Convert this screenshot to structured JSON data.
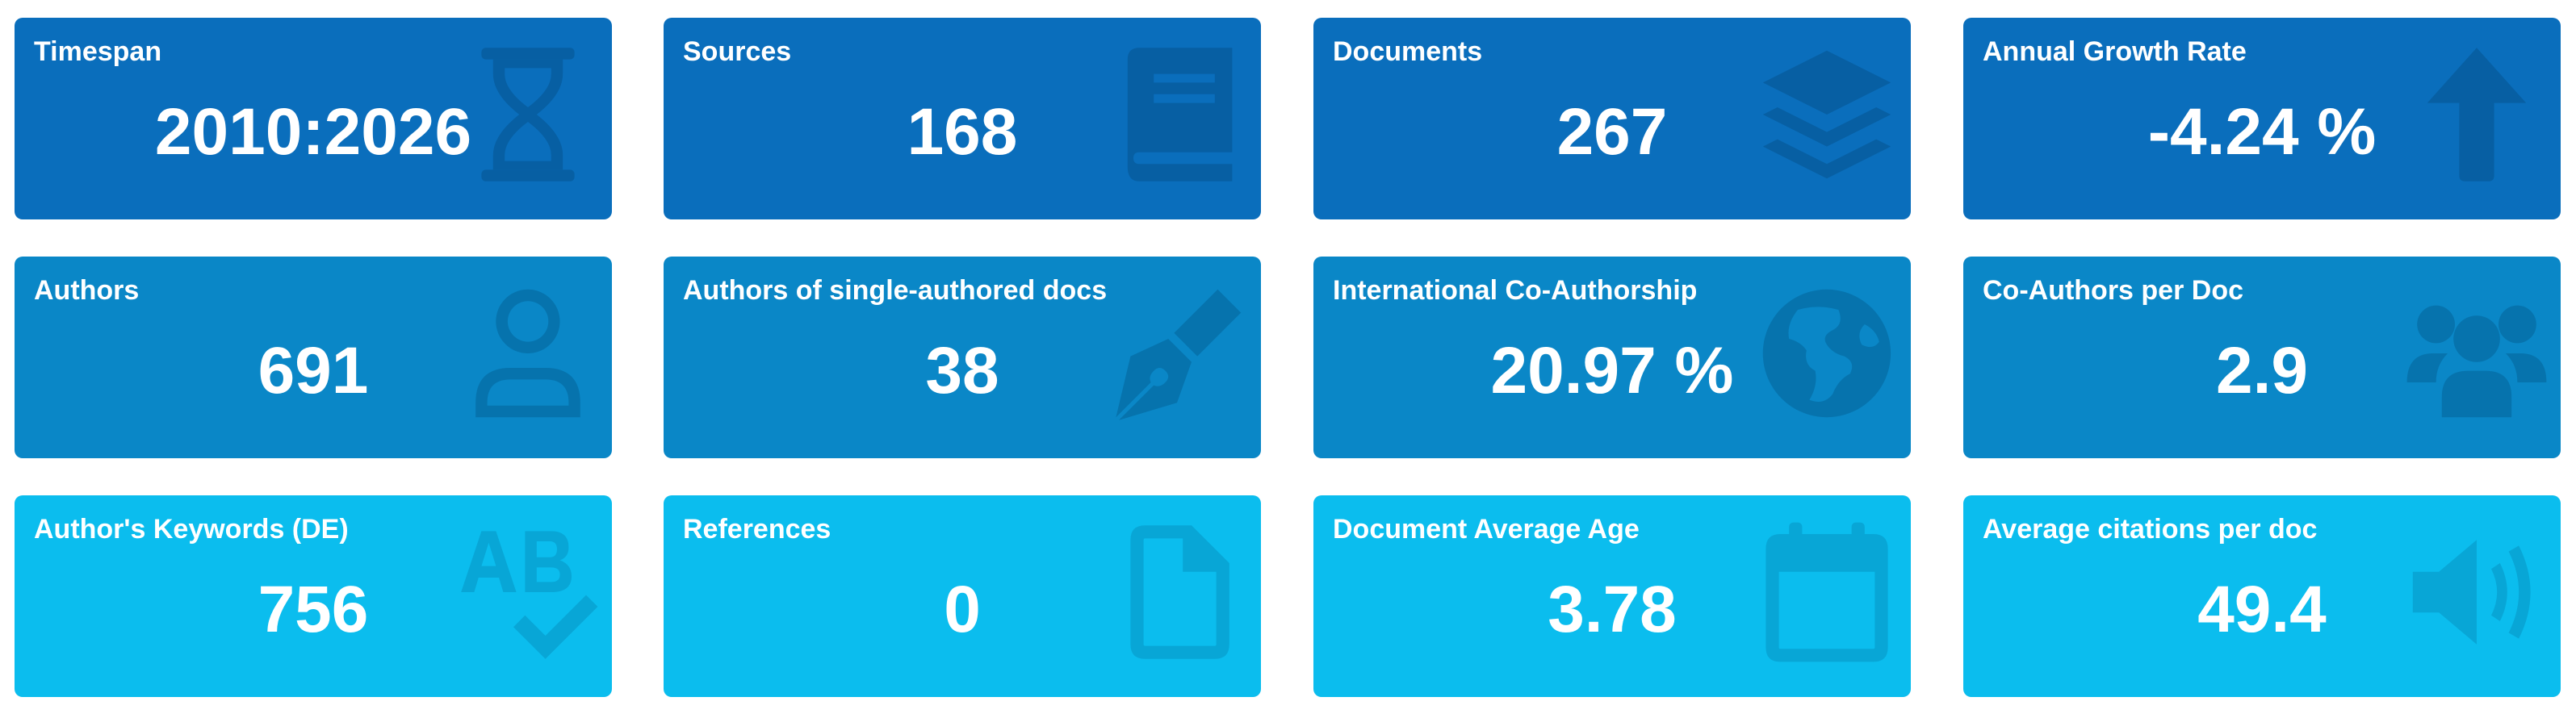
{
  "colors": {
    "row_1_bg": "#0A6EBC",
    "row_1_icon": "#075FA3",
    "row_2_bg": "#0A87C7",
    "row_2_icon": "#0673AD",
    "row_3_bg": "#0BBDEE",
    "row_3_icon": "#08A6D6"
  },
  "cards": [
    {
      "title": "Timespan",
      "value": "2010:2026",
      "icon": "hourglass-icon"
    },
    {
      "title": "Sources",
      "value": "168",
      "icon": "book-icon"
    },
    {
      "title": "Documents",
      "value": "267",
      "icon": "layers-icon"
    },
    {
      "title": "Annual Growth Rate",
      "value": "-4.24 %",
      "icon": "arrow-up-icon"
    },
    {
      "title": "Authors",
      "value": "691",
      "icon": "user-icon"
    },
    {
      "title": "Authors of single-authored docs",
      "value": "38",
      "icon": "pen-nib-icon"
    },
    {
      "title": "International Co-Authorship",
      "value": "20.97 %",
      "icon": "globe-icon"
    },
    {
      "title": "Co-Authors per Doc",
      "value": "2.9",
      "icon": "users-icon"
    },
    {
      "title": "Author's Keywords (DE)",
      "value": "756",
      "icon": "spell-check-icon"
    },
    {
      "title": "References",
      "value": "0",
      "icon": "file-icon"
    },
    {
      "title": "Document Average Age",
      "value": "3.78",
      "icon": "calendar-icon"
    },
    {
      "title": "Average citations per doc",
      "value": "49.4",
      "icon": "volume-icon"
    }
  ]
}
